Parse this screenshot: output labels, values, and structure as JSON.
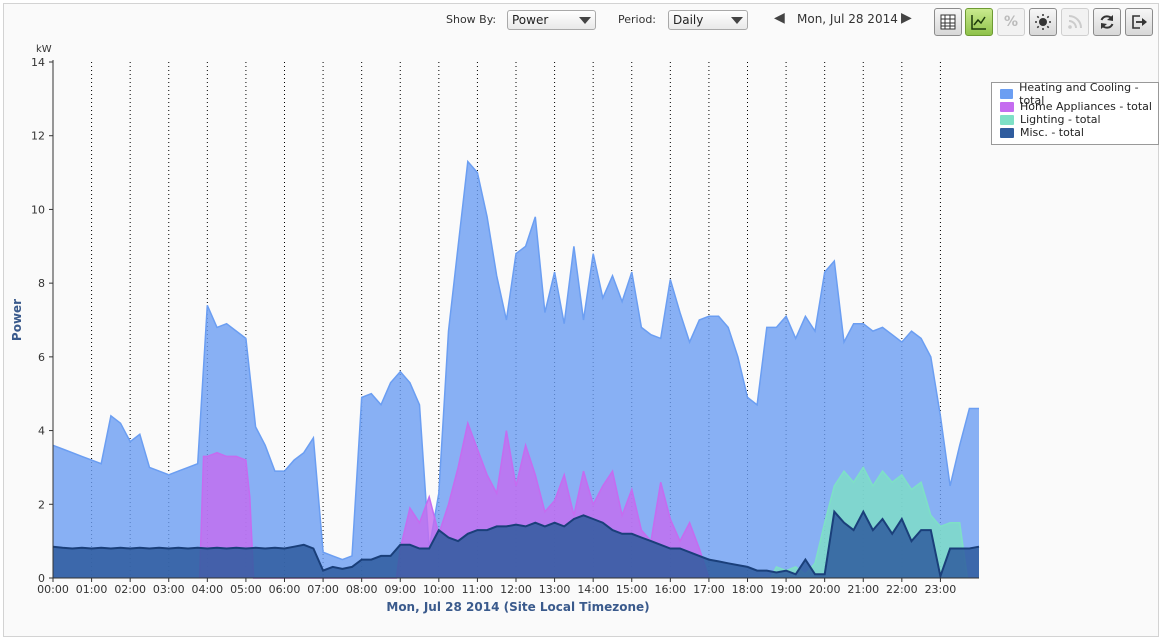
{
  "toolbar": {
    "show_by_label": "Show By:",
    "show_by_value": "Power",
    "period_label": "Period:",
    "period_value": "Daily",
    "date_label": "Mon, Jul 28 2014",
    "buttons": [
      "table-icon",
      "line-chart-icon",
      "percent-icon",
      "weather-icon",
      "feed-icon",
      "refresh-icon",
      "export-icon"
    ]
  },
  "colors": {
    "heating": "#6b9ef2",
    "appliances": "#c56cf0",
    "lighting": "#7ee0c6",
    "misc": "#2f5c9e",
    "axis_title": "#3a5a8c"
  },
  "chart_data": {
    "type": "area",
    "stacked": false,
    "unit": "kW",
    "ylabel": "Power",
    "xlabel": "Mon, Jul 28 2014 (Site Local Timezone)",
    "ylim": [
      0,
      14
    ],
    "yticks": [
      0,
      2,
      4,
      6,
      8,
      10,
      12,
      14
    ],
    "xlim": [
      0,
      24
    ],
    "xticks": [
      "00:00",
      "01:00",
      "02:00",
      "03:00",
      "04:00",
      "05:00",
      "06:00",
      "07:00",
      "08:00",
      "09:00",
      "10:00",
      "11:00",
      "12:00",
      "13:00",
      "14:00",
      "15:00",
      "16:00",
      "17:00",
      "18:00",
      "19:00",
      "20:00",
      "21:00",
      "22:00",
      "23:00"
    ],
    "grid": "vertical dotted",
    "legend_position": "top-right",
    "series": [
      {
        "name": "Heating and Cooling - total",
        "color": "#6b9ef2",
        "x": [
          0,
          0.25,
          0.5,
          0.75,
          1,
          1.25,
          1.5,
          1.75,
          2,
          2.25,
          2.5,
          2.75,
          3,
          3.25,
          3.5,
          3.75,
          4,
          4.25,
          4.5,
          4.75,
          5,
          5.25,
          5.5,
          5.75,
          6,
          6.25,
          6.5,
          6.75,
          7,
          7.25,
          7.5,
          7.75,
          8,
          8.25,
          8.5,
          8.75,
          9,
          9.25,
          9.5,
          9.75,
          10,
          10.25,
          10.5,
          10.75,
          11,
          11.25,
          11.5,
          11.75,
          12,
          12.25,
          12.5,
          12.75,
          13,
          13.25,
          13.5,
          13.75,
          14,
          14.25,
          14.5,
          14.75,
          15,
          15.25,
          15.5,
          15.75,
          16,
          16.25,
          16.5,
          16.75,
          17,
          17.25,
          17.5,
          17.75,
          18,
          18.25,
          18.5,
          18.75,
          19,
          19.25,
          19.5,
          19.75,
          20,
          20.25,
          20.5,
          20.75,
          21,
          21.25,
          21.5,
          21.75,
          22,
          22.25,
          22.5,
          22.75,
          23,
          23.25,
          23.5,
          23.75,
          24
        ],
        "values": [
          3.6,
          3.5,
          3.4,
          3.3,
          3.2,
          3.1,
          4.4,
          4.2,
          3.7,
          3.9,
          3.0,
          2.9,
          2.8,
          2.9,
          3.0,
          3.1,
          7.4,
          6.8,
          6.9,
          6.7,
          6.5,
          4.1,
          3.6,
          2.9,
          2.9,
          3.2,
          3.4,
          3.8,
          0.7,
          0.6,
          0.5,
          0.6,
          4.9,
          5.0,
          4.7,
          5.3,
          5.6,
          5.3,
          4.7,
          0.8,
          2.3,
          6.7,
          9.0,
          11.3,
          11.0,
          9.8,
          8.2,
          7.0,
          8.8,
          9.0,
          9.8,
          7.2,
          8.3,
          6.9,
          9.0,
          7.0,
          8.8,
          7.6,
          8.2,
          7.5,
          8.3,
          6.8,
          6.6,
          6.5,
          8.1,
          7.2,
          6.4,
          7.0,
          7.1,
          7.1,
          6.8,
          6.0,
          4.9,
          4.7,
          6.8,
          6.8,
          7.1,
          6.5,
          7.1,
          6.7,
          8.3,
          8.6,
          6.4,
          6.9,
          6.9,
          6.7,
          6.8,
          6.6,
          6.4,
          6.7,
          6.5,
          6.0,
          4.4,
          2.5,
          3.6,
          4.6,
          4.6
        ]
      },
      {
        "name": "Home Appliances - total",
        "color": "#c56cf0",
        "x": [
          3.8,
          3.9,
          4.0,
          4.25,
          4.5,
          4.75,
          5.0,
          5.1,
          5.2,
          8.9,
          9.0,
          9.25,
          9.5,
          9.75,
          10.0,
          10.25,
          10.5,
          10.75,
          11.0,
          11.25,
          11.5,
          11.75,
          12.0,
          12.25,
          12.5,
          12.75,
          13.0,
          13.25,
          13.5,
          13.75,
          14.0,
          14.25,
          14.5,
          14.75,
          15.0,
          15.25,
          15.5,
          15.75,
          16.0,
          16.25,
          16.5,
          16.75,
          17.0
        ],
        "values": [
          0,
          3.3,
          3.3,
          3.4,
          3.3,
          3.3,
          3.2,
          2.2,
          0,
          0,
          0.8,
          1.9,
          1.5,
          2.2,
          1.2,
          2.0,
          3.0,
          4.2,
          3.5,
          2.8,
          2.3,
          4.0,
          2.5,
          3.6,
          2.8,
          1.8,
          2.1,
          2.8,
          1.7,
          2.9,
          2.0,
          2.5,
          2.9,
          1.7,
          2.4,
          1.3,
          1.0,
          2.6,
          1.6,
          1.0,
          1.5,
          0.8,
          0
        ]
      },
      {
        "name": "Lighting - total",
        "color": "#7ee0c6",
        "x": [
          18.6,
          18.75,
          19.0,
          19.25,
          19.5,
          19.75,
          20.0,
          20.25,
          20.5,
          20.75,
          21.0,
          21.25,
          21.5,
          21.75,
          22.0,
          22.25,
          22.5,
          22.75,
          23.0,
          23.25,
          23.5,
          23.7
        ],
        "values": [
          0,
          0.3,
          0.2,
          0.3,
          0.1,
          0.4,
          1.5,
          2.5,
          2.9,
          2.6,
          3.0,
          2.5,
          2.9,
          2.6,
          2.8,
          2.4,
          2.6,
          1.7,
          1.4,
          1.5,
          1.5,
          0
        ]
      },
      {
        "name": "Misc. - total",
        "color": "#2f5c9e",
        "x": [
          0,
          0.25,
          0.5,
          0.75,
          1,
          1.25,
          1.5,
          1.75,
          2,
          2.25,
          2.5,
          2.75,
          3,
          3.25,
          3.5,
          3.75,
          4,
          4.25,
          4.5,
          4.75,
          5,
          5.25,
          5.5,
          5.75,
          6,
          6.25,
          6.5,
          6.75,
          7,
          7.25,
          7.5,
          7.75,
          8,
          8.25,
          8.5,
          8.75,
          9,
          9.25,
          9.5,
          9.75,
          10,
          10.25,
          10.5,
          10.75,
          11,
          11.25,
          11.5,
          11.75,
          12,
          12.25,
          12.5,
          12.75,
          13,
          13.25,
          13.5,
          13.75,
          14,
          14.25,
          14.5,
          14.75,
          15,
          15.25,
          15.5,
          15.75,
          16,
          16.25,
          16.5,
          16.75,
          17,
          17.25,
          17.5,
          17.75,
          18,
          18.25,
          18.5,
          18.75,
          19,
          19.25,
          19.5,
          19.75,
          20,
          20.25,
          20.5,
          20.75,
          21,
          21.25,
          21.5,
          21.75,
          22,
          22.25,
          22.5,
          22.75,
          23,
          23.25,
          23.5,
          23.75,
          24
        ],
        "values": [
          0.85,
          0.82,
          0.8,
          0.82,
          0.8,
          0.82,
          0.8,
          0.82,
          0.8,
          0.82,
          0.8,
          0.82,
          0.8,
          0.82,
          0.8,
          0.82,
          0.8,
          0.82,
          0.8,
          0.82,
          0.8,
          0.82,
          0.8,
          0.82,
          0.8,
          0.85,
          0.9,
          0.8,
          0.2,
          0.3,
          0.25,
          0.3,
          0.5,
          0.5,
          0.6,
          0.6,
          0.9,
          0.9,
          0.8,
          0.8,
          1.3,
          1.1,
          1.0,
          1.2,
          1.3,
          1.3,
          1.4,
          1.4,
          1.45,
          1.4,
          1.5,
          1.4,
          1.5,
          1.4,
          1.6,
          1.7,
          1.6,
          1.5,
          1.3,
          1.2,
          1.2,
          1.1,
          1.0,
          0.9,
          0.8,
          0.8,
          0.7,
          0.6,
          0.5,
          0.45,
          0.4,
          0.35,
          0.3,
          0.2,
          0.2,
          0.15,
          0.2,
          0.1,
          0.5,
          0.1,
          0.1,
          1.8,
          1.5,
          1.3,
          1.8,
          1.3,
          1.6,
          1.2,
          1.6,
          1.0,
          1.3,
          1.3,
          0.05,
          0.8,
          0.8,
          0.8,
          0.85
        ]
      }
    ]
  }
}
